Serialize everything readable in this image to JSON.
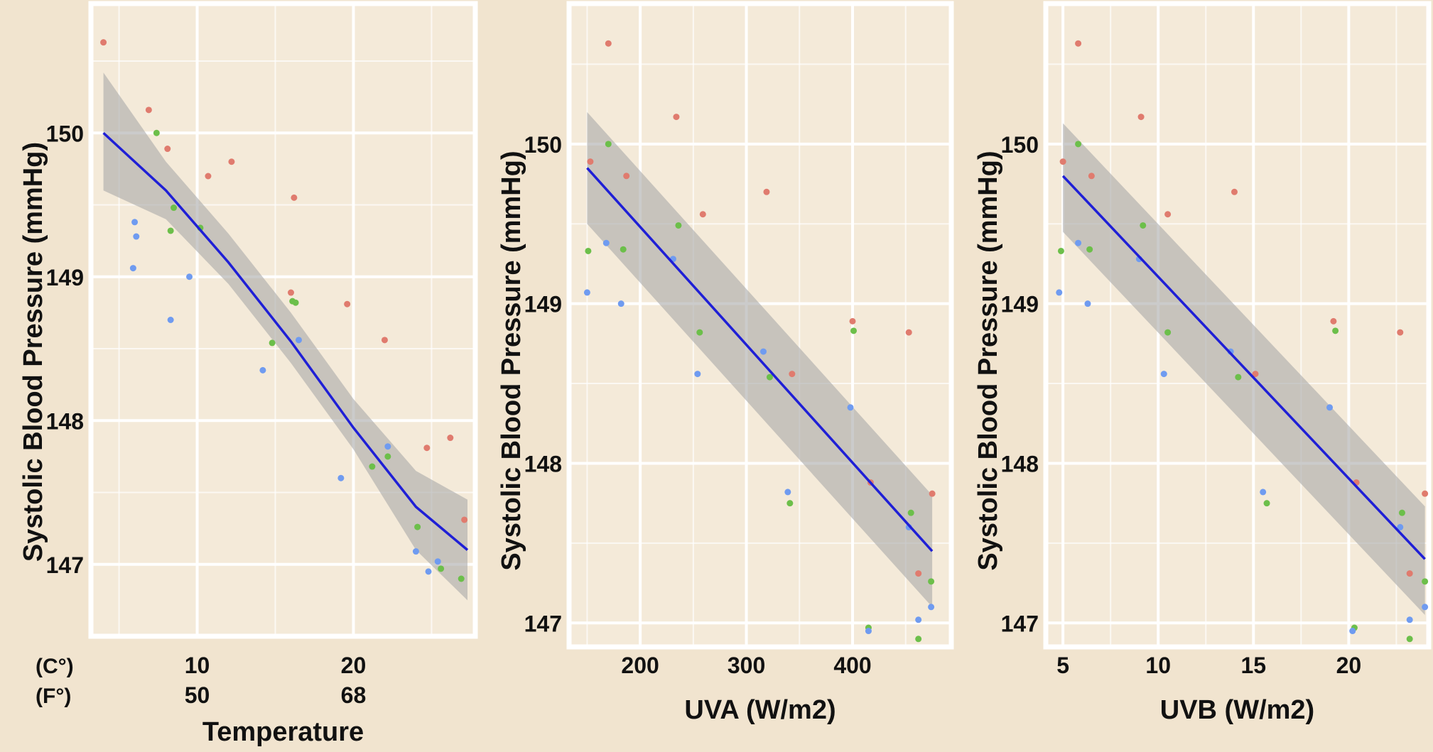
{
  "chart_data": [
    {
      "type": "scatter",
      "xlabel": "Temperature",
      "ylabel": "Systolic Blood Pressure (mmHg)",
      "xticks": [
        10,
        20
      ],
      "xticks_secondary": [
        50,
        68
      ],
      "xtick_unit_labels": [
        "(C°)",
        "(F°)"
      ],
      "yticks": [
        147,
        148,
        149,
        150
      ],
      "xlim": [
        3.2,
        27.8
      ],
      "ylim": [
        146.5,
        150.9
      ],
      "grid": true,
      "point_colors": {
        "red": "#e07b6e",
        "green": "#6cbf4a",
        "blue": "#6f9bf0"
      },
      "points": [
        {
          "x": 4.0,
          "y": 150.63,
          "c": "red"
        },
        {
          "x": 6.9,
          "y": 150.16,
          "c": "red"
        },
        {
          "x": 7.4,
          "y": 150.0,
          "c": "green"
        },
        {
          "x": 8.1,
          "y": 149.89,
          "c": "red"
        },
        {
          "x": 10.7,
          "y": 149.7,
          "c": "red"
        },
        {
          "x": 12.2,
          "y": 149.8,
          "c": "red"
        },
        {
          "x": 16.2,
          "y": 149.55,
          "c": "red"
        },
        {
          "x": 8.5,
          "y": 149.48,
          "c": "green"
        },
        {
          "x": 10.2,
          "y": 149.34,
          "c": "green"
        },
        {
          "x": 8.3,
          "y": 149.32,
          "c": "green"
        },
        {
          "x": 6.0,
          "y": 149.38,
          "c": "blue"
        },
        {
          "x": 6.1,
          "y": 149.28,
          "c": "blue"
        },
        {
          "x": 5.9,
          "y": 149.06,
          "c": "blue"
        },
        {
          "x": 9.5,
          "y": 149.0,
          "c": "blue"
        },
        {
          "x": 8.3,
          "y": 148.7,
          "c": "blue"
        },
        {
          "x": 16.0,
          "y": 148.89,
          "c": "red"
        },
        {
          "x": 16.1,
          "y": 148.83,
          "c": "green"
        },
        {
          "x": 16.3,
          "y": 148.82,
          "c": "green"
        },
        {
          "x": 19.6,
          "y": 148.81,
          "c": "red"
        },
        {
          "x": 16.5,
          "y": 148.56,
          "c": "blue"
        },
        {
          "x": 22.0,
          "y": 148.56,
          "c": "red"
        },
        {
          "x": 14.8,
          "y": 148.54,
          "c": "green"
        },
        {
          "x": 14.2,
          "y": 148.35,
          "c": "blue"
        },
        {
          "x": 22.2,
          "y": 147.82,
          "c": "blue"
        },
        {
          "x": 22.2,
          "y": 147.75,
          "c": "green"
        },
        {
          "x": 24.7,
          "y": 147.81,
          "c": "red"
        },
        {
          "x": 26.2,
          "y": 147.88,
          "c": "red"
        },
        {
          "x": 21.2,
          "y": 147.68,
          "c": "green"
        },
        {
          "x": 19.2,
          "y": 147.6,
          "c": "blue"
        },
        {
          "x": 27.1,
          "y": 147.31,
          "c": "red"
        },
        {
          "x": 24.1,
          "y": 147.26,
          "c": "green"
        },
        {
          "x": 24.0,
          "y": 147.09,
          "c": "blue"
        },
        {
          "x": 25.4,
          "y": 147.02,
          "c": "blue"
        },
        {
          "x": 25.6,
          "y": 146.97,
          "c": "green"
        },
        {
          "x": 24.8,
          "y": 146.95,
          "c": "blue"
        },
        {
          "x": 26.9,
          "y": 146.9,
          "c": "green"
        }
      ],
      "fit": {
        "x": [
          4.0,
          8.0,
          12.0,
          16.0,
          20.0,
          24.0,
          27.3
        ],
        "y": [
          150.0,
          149.6,
          149.1,
          148.55,
          147.95,
          147.4,
          147.1
        ],
        "lo": [
          149.6,
          149.4,
          148.95,
          148.4,
          147.8,
          147.1,
          146.75
        ],
        "hi": [
          150.42,
          149.8,
          149.3,
          148.75,
          148.15,
          147.65,
          147.45
        ]
      }
    },
    {
      "type": "scatter",
      "xlabel": "UVA (W/m2)",
      "ylabel": "Systolic Blood Pressure (mmHg)",
      "xticks": [
        200,
        300,
        400
      ],
      "yticks": [
        147,
        148,
        149,
        150
      ],
      "xlim": [
        133,
        493
      ],
      "ylim": [
        146.85,
        150.88
      ],
      "grid": true,
      "points": [
        {
          "x": 170,
          "y": 150.63,
          "c": "red"
        },
        {
          "x": 234,
          "y": 150.17,
          "c": "red"
        },
        {
          "x": 170,
          "y": 150.0,
          "c": "green"
        },
        {
          "x": 153,
          "y": 149.89,
          "c": "red"
        },
        {
          "x": 187,
          "y": 149.8,
          "c": "red"
        },
        {
          "x": 319,
          "y": 149.7,
          "c": "red"
        },
        {
          "x": 259,
          "y": 149.56,
          "c": "red"
        },
        {
          "x": 236,
          "y": 149.49,
          "c": "green"
        },
        {
          "x": 168,
          "y": 149.38,
          "c": "blue"
        },
        {
          "x": 184,
          "y": 149.34,
          "c": "green"
        },
        {
          "x": 151,
          "y": 149.33,
          "c": "green"
        },
        {
          "x": 231,
          "y": 149.28,
          "c": "blue"
        },
        {
          "x": 150,
          "y": 149.07,
          "c": "blue"
        },
        {
          "x": 182,
          "y": 149.0,
          "c": "blue"
        },
        {
          "x": 400,
          "y": 148.89,
          "c": "red"
        },
        {
          "x": 401,
          "y": 148.83,
          "c": "green"
        },
        {
          "x": 256,
          "y": 148.82,
          "c": "green"
        },
        {
          "x": 453,
          "y": 148.82,
          "c": "red"
        },
        {
          "x": 316,
          "y": 148.7,
          "c": "blue"
        },
        {
          "x": 254,
          "y": 148.56,
          "c": "blue"
        },
        {
          "x": 343,
          "y": 148.56,
          "c": "red"
        },
        {
          "x": 322,
          "y": 148.54,
          "c": "green"
        },
        {
          "x": 398,
          "y": 148.35,
          "c": "blue"
        },
        {
          "x": 417,
          "y": 147.88,
          "c": "red"
        },
        {
          "x": 339,
          "y": 147.82,
          "c": "blue"
        },
        {
          "x": 475,
          "y": 147.81,
          "c": "red"
        },
        {
          "x": 341,
          "y": 147.75,
          "c": "green"
        },
        {
          "x": 455,
          "y": 147.69,
          "c": "green"
        },
        {
          "x": 453,
          "y": 147.6,
          "c": "blue"
        },
        {
          "x": 462,
          "y": 147.31,
          "c": "red"
        },
        {
          "x": 474,
          "y": 147.26,
          "c": "green"
        },
        {
          "x": 474,
          "y": 147.1,
          "c": "blue"
        },
        {
          "x": 462,
          "y": 147.02,
          "c": "blue"
        },
        {
          "x": 415,
          "y": 146.97,
          "c": "green"
        },
        {
          "x": 415,
          "y": 146.95,
          "c": "blue"
        },
        {
          "x": 462,
          "y": 146.9,
          "c": "green"
        }
      ],
      "fit": {
        "x": [
          150,
          475
        ],
        "y": [
          149.85,
          147.45
        ],
        "lo": [
          149.5,
          147.1
        ],
        "hi": [
          150.2,
          147.8
        ]
      }
    },
    {
      "type": "scatter",
      "xlabel": "UVB (W/m2)",
      "ylabel": "Systolic Blood Pressure (mmHg)",
      "xticks": [
        5,
        10,
        15,
        20
      ],
      "yticks": [
        147,
        148,
        149,
        150
      ],
      "xlim": [
        4.1,
        24.2
      ],
      "ylim": [
        146.85,
        150.88
      ],
      "grid": true,
      "points": [
        {
          "x": 5.8,
          "y": 150.63,
          "c": "red"
        },
        {
          "x": 9.1,
          "y": 150.17,
          "c": "red"
        },
        {
          "x": 5.8,
          "y": 150.0,
          "c": "green"
        },
        {
          "x": 5.0,
          "y": 149.89,
          "c": "red"
        },
        {
          "x": 6.5,
          "y": 149.8,
          "c": "red"
        },
        {
          "x": 14.0,
          "y": 149.7,
          "c": "red"
        },
        {
          "x": 10.5,
          "y": 149.56,
          "c": "red"
        },
        {
          "x": 9.2,
          "y": 149.49,
          "c": "green"
        },
        {
          "x": 5.8,
          "y": 149.38,
          "c": "blue"
        },
        {
          "x": 6.4,
          "y": 149.34,
          "c": "green"
        },
        {
          "x": 4.9,
          "y": 149.33,
          "c": "green"
        },
        {
          "x": 9.0,
          "y": 149.28,
          "c": "blue"
        },
        {
          "x": 4.8,
          "y": 149.07,
          "c": "blue"
        },
        {
          "x": 6.3,
          "y": 149.0,
          "c": "blue"
        },
        {
          "x": 19.2,
          "y": 148.89,
          "c": "red"
        },
        {
          "x": 19.3,
          "y": 148.83,
          "c": "green"
        },
        {
          "x": 10.5,
          "y": 148.82,
          "c": "green"
        },
        {
          "x": 22.7,
          "y": 148.82,
          "c": "red"
        },
        {
          "x": 13.8,
          "y": 148.7,
          "c": "blue"
        },
        {
          "x": 10.3,
          "y": 148.56,
          "c": "blue"
        },
        {
          "x": 15.1,
          "y": 148.56,
          "c": "red"
        },
        {
          "x": 14.2,
          "y": 148.54,
          "c": "green"
        },
        {
          "x": 19.0,
          "y": 148.35,
          "c": "blue"
        },
        {
          "x": 20.4,
          "y": 147.88,
          "c": "red"
        },
        {
          "x": 15.5,
          "y": 147.82,
          "c": "blue"
        },
        {
          "x": 24.0,
          "y": 147.81,
          "c": "red"
        },
        {
          "x": 15.7,
          "y": 147.75,
          "c": "green"
        },
        {
          "x": 22.8,
          "y": 147.69,
          "c": "green"
        },
        {
          "x": 22.7,
          "y": 147.6,
          "c": "blue"
        },
        {
          "x": 23.2,
          "y": 147.31,
          "c": "red"
        },
        {
          "x": 24.0,
          "y": 147.26,
          "c": "green"
        },
        {
          "x": 24.0,
          "y": 147.1,
          "c": "blue"
        },
        {
          "x": 23.2,
          "y": 147.02,
          "c": "blue"
        },
        {
          "x": 20.3,
          "y": 146.97,
          "c": "green"
        },
        {
          "x": 20.2,
          "y": 146.95,
          "c": "blue"
        },
        {
          "x": 23.2,
          "y": 146.9,
          "c": "green"
        }
      ],
      "fit": {
        "x": [
          5.0,
          24.0
        ],
        "y": [
          149.8,
          147.4
        ],
        "lo": [
          149.45,
          147.05
        ],
        "hi": [
          150.13,
          147.73
        ]
      }
    }
  ]
}
